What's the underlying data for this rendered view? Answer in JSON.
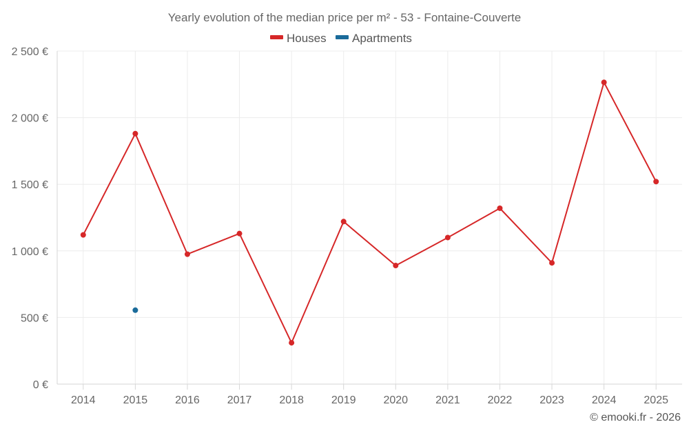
{
  "chart_data": {
    "type": "line",
    "title": "Yearly evolution of the median price per m² - 53 - Fontaine-Couverte",
    "categories": [
      "2014",
      "2015",
      "2016",
      "2017",
      "2018",
      "2019",
      "2020",
      "2021",
      "2022",
      "2023",
      "2024",
      "2025"
    ],
    "ylim": [
      0,
      2500
    ],
    "yticks": [
      0,
      500,
      1000,
      1500,
      2000,
      2500
    ],
    "ytick_labels": [
      "0 €",
      "500 €",
      "1 000 €",
      "1 500 €",
      "2 000 €",
      "2 500 €"
    ],
    "grid": true,
    "legend_position": "top-center",
    "series": [
      {
        "name": "Houses",
        "color": "#d62728",
        "values": [
          1120,
          1880,
          975,
          1130,
          310,
          1220,
          890,
          1100,
          1320,
          910,
          2265,
          1520
        ]
      },
      {
        "name": "Apartments",
        "color": "#1a6b9a",
        "values": [
          null,
          555,
          null,
          null,
          null,
          null,
          null,
          null,
          null,
          null,
          null,
          null
        ]
      }
    ]
  },
  "footer": {
    "credit": "© emooki.fr - 2026"
  }
}
